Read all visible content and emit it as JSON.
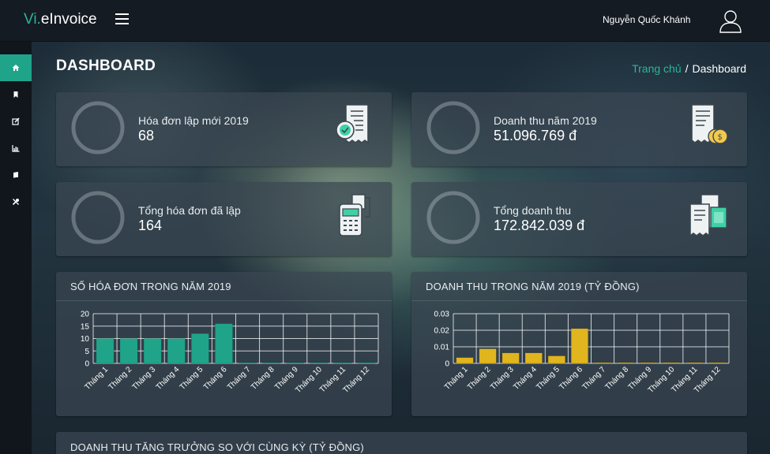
{
  "header": {
    "brand_prefix": "Vi.",
    "brand_name": "eInvoice",
    "username": "Nguyễn Quốc Khánh"
  },
  "sidebar": {
    "items": [
      {
        "icon": "home-icon",
        "active": true
      },
      {
        "icon": "bookmark-icon",
        "active": false
      },
      {
        "icon": "edit-icon",
        "active": false
      },
      {
        "icon": "bar-chart-icon",
        "active": false
      },
      {
        "icon": "book-icon",
        "active": false
      },
      {
        "icon": "tools-icon",
        "active": false
      }
    ]
  },
  "page": {
    "title": "DASHBOARD",
    "breadcrumb_home": "Trang chủ",
    "breadcrumb_sep": "/",
    "breadcrumb_current": "Dashboard"
  },
  "stats": [
    {
      "label": "Hóa đơn lập mới 2019",
      "value": "68",
      "icon": "invoice-check-icon"
    },
    {
      "label": "Doanh thu năm 2019",
      "value": "51.096.769 đ",
      "icon": "receipt-coins-icon"
    },
    {
      "label": "Tổng hóa đơn đã lập",
      "value": "164",
      "icon": "pos-terminal-icon"
    },
    {
      "label": "Tổng doanh thu",
      "value": "172.842.039 đ",
      "icon": "receipt-cash-icon"
    }
  ],
  "colors": {
    "accent": "#1fa48a",
    "invoice_bar": "#1fa48a",
    "revenue_bar": "#e0b51e"
  },
  "chart_data": [
    {
      "type": "bar",
      "title": "SỐ HÓA ĐƠN TRONG NĂM 2019",
      "categories": [
        "Tháng 1",
        "Tháng 2",
        "Tháng 3",
        "Tháng 4",
        "Tháng 5",
        "Tháng 6",
        "Tháng 7",
        "Tháng 8",
        "Tháng 9",
        "Tháng 10",
        "Tháng 11",
        "Tháng 12"
      ],
      "values": [
        10,
        10,
        10,
        10,
        12,
        16,
        0,
        0,
        0,
        0,
        0,
        0
      ],
      "yticks": [
        "20",
        "15",
        "10",
        "5",
        "0"
      ],
      "ylim": [
        0,
        20
      ],
      "grid": true,
      "color": "#1fa48a"
    },
    {
      "type": "bar",
      "title": "DOANH THU TRONG NĂM 2019 (TỶ ĐỒNG)",
      "categories": [
        "Tháng 1",
        "Tháng 2",
        "Tháng 3",
        "Tháng 4",
        "Tháng 5",
        "Tháng 6",
        "Tháng 7",
        "Tháng 8",
        "Tháng 9",
        "Tháng 10",
        "Tháng 11",
        "Tháng 12"
      ],
      "values": [
        0.0035,
        0.0088,
        0.0063,
        0.0063,
        0.0045,
        0.021,
        0,
        0,
        0,
        0,
        0,
        0
      ],
      "yticks": [
        "0.03",
        "0.02",
        "0.01",
        "0"
      ],
      "ylim": [
        0,
        0.03
      ],
      "grid": true,
      "color": "#e0b51e"
    }
  ],
  "bottom_panel": {
    "title": "DOANH THU TĂNG TRƯỞNG SO VỚI CÙNG KỲ (TỶ ĐỒNG)"
  }
}
